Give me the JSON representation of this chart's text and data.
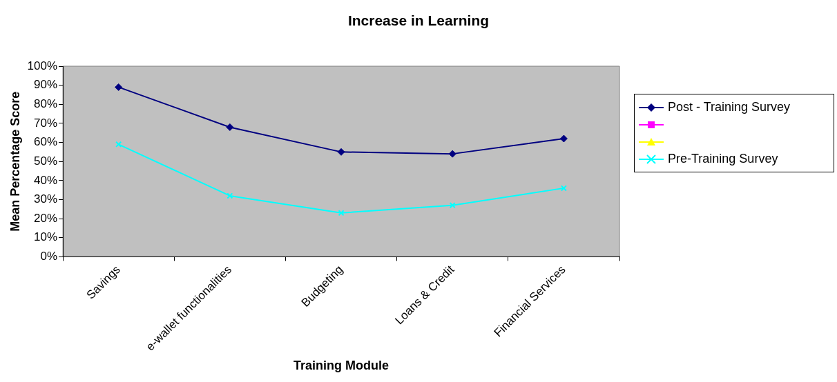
{
  "chart_data": {
    "type": "line",
    "title": "Increase in Learning",
    "xlabel": "Training Module",
    "ylabel": "Mean Percentage Score",
    "categories": [
      "Savings",
      "e-wallet functionalities",
      "Budgeting",
      "Loans & Credit",
      "Financial Services"
    ],
    "series": [
      {
        "name": "Post - Training Survey",
        "color": "#000080",
        "marker": "diamond",
        "values": [
          89,
          68,
          55,
          54,
          62
        ]
      },
      {
        "name": "Pre-Training Survey",
        "color": "#00ffff",
        "marker": "cross",
        "values": [
          59,
          32,
          23,
          27,
          36
        ]
      }
    ],
    "ylim": [
      0,
      100
    ],
    "yticks": [
      {
        "value": 0,
        "label": "0%"
      },
      {
        "value": 10,
        "label": "10%"
      },
      {
        "value": 20,
        "label": "20%"
      },
      {
        "value": 30,
        "label": "30%"
      },
      {
        "value": 40,
        "label": "40%"
      },
      {
        "value": 50,
        "label": "50%"
      },
      {
        "value": 60,
        "label": "60%"
      },
      {
        "value": 70,
        "label": "70%"
      },
      {
        "value": 80,
        "label": "80%"
      },
      {
        "value": 90,
        "label": "90%"
      },
      {
        "value": 100,
        "label": "100%"
      }
    ],
    "grid": false,
    "legend": "right",
    "line_style": "solid"
  }
}
